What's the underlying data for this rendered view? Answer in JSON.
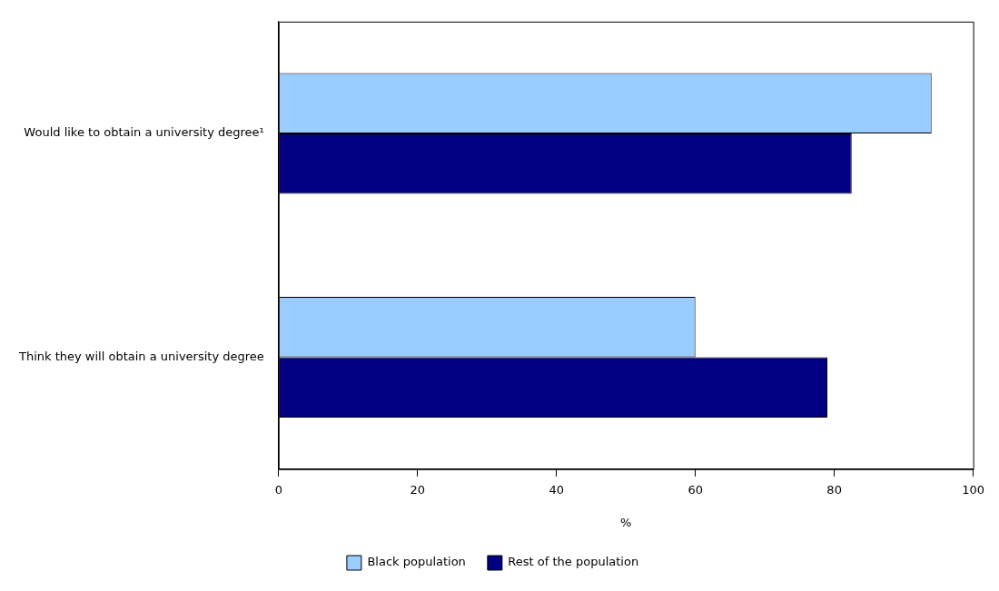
{
  "chart_data": {
    "type": "bar",
    "orientation": "horizontal",
    "categories": [
      "Would like to obtain a university degree¹",
      "Think they will obtain a university degree"
    ],
    "series": [
      {
        "name": "Black population",
        "color": "#99ccff",
        "values": [
          94,
          60
        ]
      },
      {
        "name": "Rest of the population",
        "color": "#000080",
        "values": [
          82.5,
          79
        ]
      }
    ],
    "xlabel": "%",
    "xlim": [
      0,
      100
    ],
    "xticks": [
      0,
      20,
      40,
      60,
      80,
      100
    ],
    "grid": false,
    "legend": "bottom"
  }
}
